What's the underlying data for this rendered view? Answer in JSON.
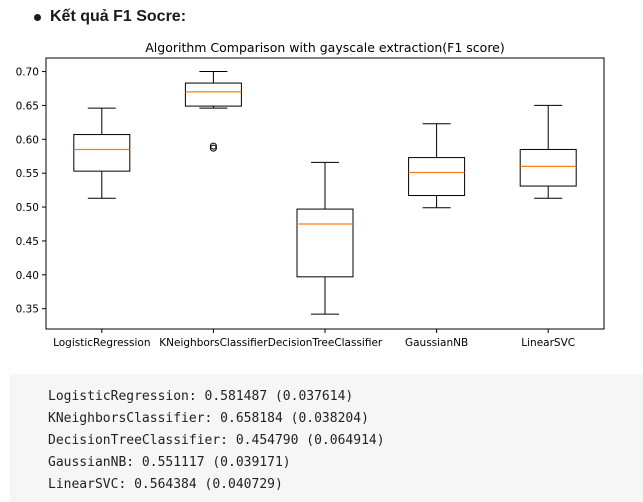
{
  "heading": {
    "text": "Kết quả F1 Socre:"
  },
  "chart_data": {
    "type": "box",
    "title": "Algorithm Comparison with gayscale extraction(F1 score)",
    "xlabel": "",
    "ylabel": "",
    "ylim": [
      0.32,
      0.72
    ],
    "yticks": [
      "0.35",
      "0.40",
      "0.45",
      "0.50",
      "0.55",
      "0.60",
      "0.65",
      "0.70"
    ],
    "grid": false,
    "categories": [
      "LogisticRegression",
      "KNeighborsClassifier",
      "DecisionTreeClassifier",
      "GaussianNB",
      "LinearSVC"
    ],
    "boxes": [
      {
        "whislo": 0.513,
        "q1": 0.553,
        "med": 0.585,
        "q3": 0.607,
        "whishi": 0.646,
        "fliers": []
      },
      {
        "whislo": 0.646,
        "q1": 0.649,
        "med": 0.67,
        "q3": 0.683,
        "whishi": 0.7,
        "fliers": [
          0.587,
          0.59
        ]
      },
      {
        "whislo": 0.342,
        "q1": 0.397,
        "med": 0.475,
        "q3": 0.497,
        "whishi": 0.566,
        "fliers": []
      },
      {
        "whislo": 0.499,
        "q1": 0.517,
        "med": 0.551,
        "q3": 0.573,
        "whishi": 0.623,
        "fliers": []
      },
      {
        "whislo": 0.513,
        "q1": 0.531,
        "med": 0.56,
        "q3": 0.585,
        "whishi": 0.65,
        "fliers": []
      }
    ],
    "colors": {
      "box": "#000000",
      "median": "#ff7f0e",
      "frame": "#000000"
    }
  },
  "output": {
    "lines": [
      "LogisticRegression: 0.581487 (0.037614)",
      "KNeighborsClassifier: 0.658184 (0.038204)",
      "DecisionTreeClassifier: 0.454790 (0.064914)",
      "GaussianNB: 0.551117 (0.039171)",
      "LinearSVC: 0.564384 (0.040729)"
    ]
  }
}
